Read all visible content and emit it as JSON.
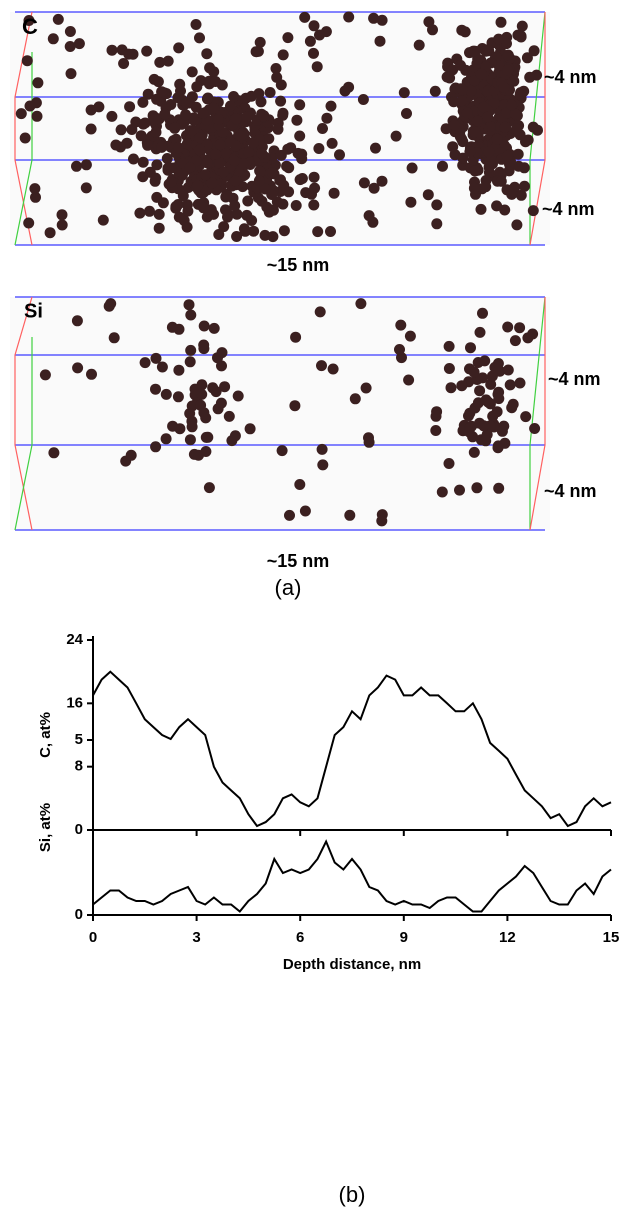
{
  "atom_maps": [
    {
      "element": "C",
      "depth_label_1": "~4 nm",
      "depth_label_2": "~4 nm",
      "length_label": "~15 nm"
    },
    {
      "element": "Si",
      "depth_label_1": "~4 nm",
      "depth_label_2": "~4 nm",
      "length_label": "~15 nm"
    }
  ],
  "panel_a_label": "(a)",
  "panel_b_label": "(b)",
  "chart_data": [
    {
      "type": "line",
      "ylabel": "C, at%",
      "xlim": [
        0,
        15
      ],
      "xticks": [
        0,
        3,
        6,
        9,
        12,
        15
      ],
      "xtick_labels": false,
      "ylim": [
        0,
        24
      ],
      "yticks": [
        0,
        8,
        16,
        24
      ],
      "color": "#000000",
      "x": [
        0,
        0.25,
        0.5,
        0.75,
        1,
        1.25,
        1.5,
        1.75,
        2,
        2.25,
        2.5,
        2.75,
        3,
        3.25,
        3.5,
        3.75,
        4,
        4.25,
        4.5,
        4.75,
        5,
        5.25,
        5.5,
        5.75,
        6,
        6.25,
        6.5,
        6.75,
        7,
        7.25,
        7.5,
        7.75,
        8,
        8.25,
        8.5,
        8.75,
        9,
        9.25,
        9.5,
        9.75,
        10,
        10.25,
        10.5,
        10.75,
        11,
        11.25,
        11.5,
        11.75,
        12,
        12.25,
        12.5,
        12.75,
        13,
        13.25,
        13.5,
        13.75,
        14,
        14.25,
        14.5,
        14.75,
        15
      ],
      "values": [
        17,
        19,
        20,
        19,
        18,
        16,
        14,
        13,
        12,
        11.5,
        13,
        14,
        13,
        12,
        8,
        6,
        5,
        4,
        2,
        0.5,
        1,
        2,
        4,
        4.5,
        3.5,
        3,
        4,
        8,
        12,
        13,
        15,
        14,
        17,
        18,
        19.5,
        19,
        17,
        17,
        18,
        17,
        17,
        16,
        15,
        15,
        16,
        14,
        11,
        10,
        9,
        7,
        5,
        4,
        3,
        1.5,
        2,
        0.5,
        1,
        3,
        4,
        3,
        3.5
      ]
    },
    {
      "type": "line",
      "ylabel": "Si, at%",
      "xlabel": "Depth distance, nm",
      "xlim": [
        0,
        15
      ],
      "xticks": [
        0,
        3,
        6,
        9,
        12,
        15
      ],
      "xtick_labels": true,
      "ylim": [
        0,
        5
      ],
      "yticks": [
        0,
        5
      ],
      "color": "#000000",
      "x": [
        0,
        0.25,
        0.5,
        0.75,
        1,
        1.25,
        1.5,
        1.75,
        2,
        2.25,
        2.5,
        2.75,
        3,
        3.25,
        3.5,
        3.75,
        4,
        4.25,
        4.5,
        4.75,
        5,
        5.25,
        5.5,
        5.75,
        6,
        6.25,
        6.5,
        6.75,
        7,
        7.25,
        7.5,
        7.75,
        8,
        8.25,
        8.5,
        8.75,
        9,
        9.25,
        9.5,
        9.75,
        10,
        10.25,
        10.5,
        10.75,
        11,
        11.25,
        11.5,
        11.75,
        12,
        12.25,
        12.5,
        12.75,
        13,
        13.25,
        13.5,
        13.75,
        14,
        14.25,
        14.5,
        14.75,
        15
      ],
      "values": [
        0.3,
        0.5,
        0.7,
        0.7,
        0.5,
        0.4,
        0.4,
        0.3,
        0.4,
        0.6,
        0.7,
        0.8,
        0.4,
        0.3,
        0.5,
        0.3,
        0.3,
        0.1,
        0.4,
        0.6,
        0.9,
        1.6,
        1.2,
        1.3,
        1.2,
        1.3,
        1.6,
        2.1,
        1.5,
        1.3,
        1.6,
        1.3,
        0.8,
        0.7,
        0.4,
        0.3,
        0.4,
        0.3,
        0.3,
        0.2,
        0.4,
        0.5,
        0.5,
        0.3,
        0.1,
        0.1,
        0.4,
        0.7,
        0.9,
        1.1,
        1.4,
        1.2,
        0.8,
        0.4,
        0.3,
        0.3,
        0.7,
        0.9,
        0.6,
        1.1,
        1.3
      ]
    }
  ]
}
